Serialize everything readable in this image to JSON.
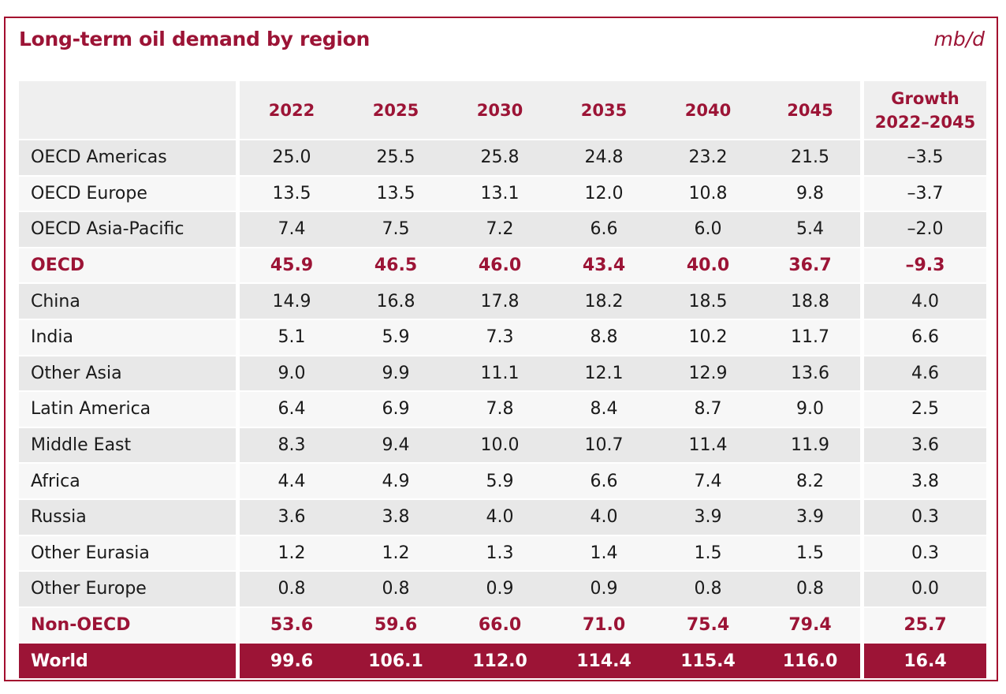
{
  "title": "Long-term oil demand by region",
  "unit": "mb/d",
  "table": {
    "columns": [
      "",
      "2022",
      "2025",
      "2030",
      "2035",
      "2040",
      "2045"
    ],
    "growth_header": {
      "line1": "Growth",
      "line2": "2022–2045"
    },
    "rows": [
      {
        "region": "OECD Americas",
        "values": [
          "25.0",
          "25.5",
          "25.8",
          "24.8",
          "23.2",
          "21.5"
        ],
        "growth": "–3.5",
        "kind": "shade"
      },
      {
        "region": "OECD Europe",
        "values": [
          "13.5",
          "13.5",
          "13.1",
          "12.0",
          "10.8",
          "9.8"
        ],
        "growth": "–3.7",
        "kind": "plain"
      },
      {
        "region": "OECD Asia-Pacific",
        "values": [
          "7.4",
          "7.5",
          "7.2",
          "6.6",
          "6.0",
          "5.4"
        ],
        "growth": "–2.0",
        "kind": "shade"
      },
      {
        "region": "OECD",
        "values": [
          "45.9",
          "46.5",
          "46.0",
          "43.4",
          "40.0",
          "36.7"
        ],
        "growth": "–9.3",
        "kind": "subtotal"
      },
      {
        "region": "China",
        "values": [
          "14.9",
          "16.8",
          "17.8",
          "18.2",
          "18.5",
          "18.8"
        ],
        "growth": "4.0",
        "kind": "shade"
      },
      {
        "region": "India",
        "values": [
          "5.1",
          "5.9",
          "7.3",
          "8.8",
          "10.2",
          "11.7"
        ],
        "growth": "6.6",
        "kind": "plain"
      },
      {
        "region": "Other Asia",
        "values": [
          "9.0",
          "9.9",
          "11.1",
          "12.1",
          "12.9",
          "13.6"
        ],
        "growth": "4.6",
        "kind": "shade"
      },
      {
        "region": "Latin America",
        "values": [
          "6.4",
          "6.9",
          "7.8",
          "8.4",
          "8.7",
          "9.0"
        ],
        "growth": "2.5",
        "kind": "plain"
      },
      {
        "region": "Middle East",
        "values": [
          "8.3",
          "9.4",
          "10.0",
          "10.7",
          "11.4",
          "11.9"
        ],
        "growth": "3.6",
        "kind": "shade"
      },
      {
        "region": "Africa",
        "values": [
          "4.4",
          "4.9",
          "5.9",
          "6.6",
          "7.4",
          "8.2"
        ],
        "growth": "3.8",
        "kind": "plain"
      },
      {
        "region": "Russia",
        "values": [
          "3.6",
          "3.8",
          "4.0",
          "4.0",
          "3.9",
          "3.9"
        ],
        "growth": "0.3",
        "kind": "shade"
      },
      {
        "region": "Other Eurasia",
        "values": [
          "1.2",
          "1.2",
          "1.3",
          "1.4",
          "1.5",
          "1.5"
        ],
        "growth": "0.3",
        "kind": "plain"
      },
      {
        "region": "Other Europe",
        "values": [
          "0.8",
          "0.8",
          "0.9",
          "0.9",
          "0.8",
          "0.8"
        ],
        "growth": "0.0",
        "kind": "shade"
      },
      {
        "region": "Non-OECD",
        "values": [
          "53.6",
          "59.6",
          "66.0",
          "71.0",
          "75.4",
          "79.4"
        ],
        "growth": "25.7",
        "kind": "subtotal"
      },
      {
        "region": "World",
        "values": [
          "99.6",
          "106.1",
          "112.0",
          "114.4",
          "115.4",
          "116.0"
        ],
        "growth": "16.4",
        "kind": "total"
      }
    ]
  },
  "colors": {
    "accent": "#9c1436",
    "frame": "#a30d2e",
    "shade": "#e8e8e8",
    "plain": "#f7f7f7",
    "header": "#efefef"
  }
}
